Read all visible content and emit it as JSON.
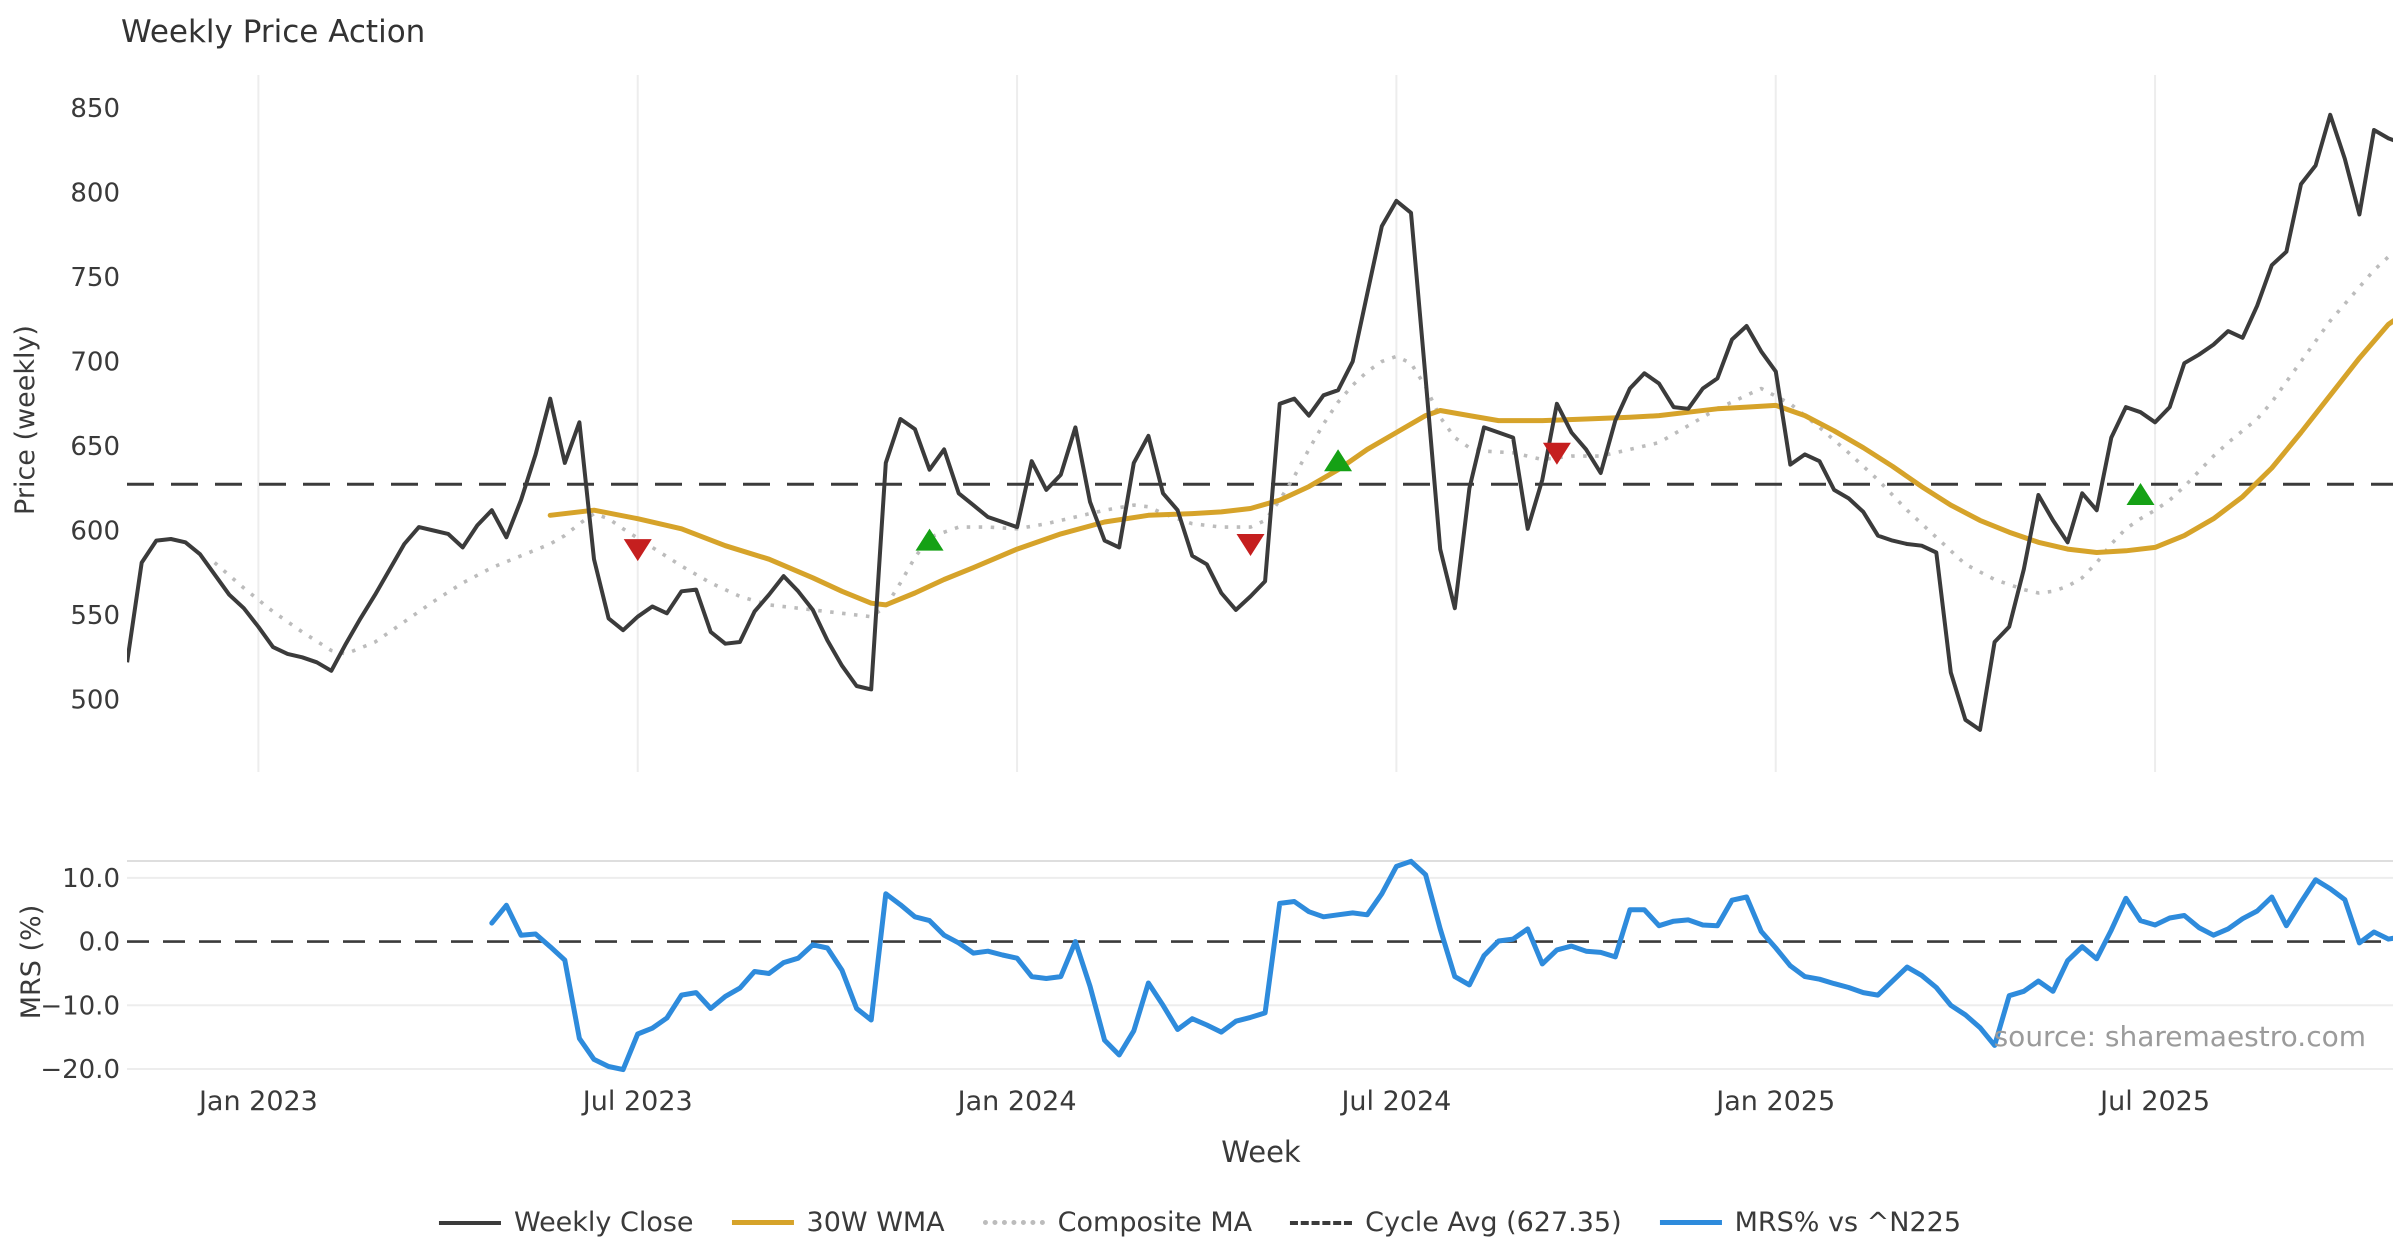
{
  "title": "Weekly Price Action",
  "price_axis": {
    "ylabel": "Price (weekly)",
    "yticks": [
      850,
      800,
      750,
      700,
      650,
      600,
      550,
      500
    ]
  },
  "mrs_axis": {
    "ylabel": "MRS (%)",
    "yticks": [
      {
        "label": "10.0",
        "value": 10
      },
      {
        "label": "0.0",
        "value": 0
      },
      {
        "label": "−10.0",
        "value": -10
      },
      {
        "label": "−20.0",
        "value": -20
      }
    ]
  },
  "xlabel": "Week",
  "source": "source: sharemaestro.com",
  "legend": [
    {
      "label": "Weekly Close",
      "key": "close",
      "style": "solid"
    },
    {
      "label": "30W WMA",
      "key": "wma",
      "style": "solid"
    },
    {
      "label": "Composite MA",
      "key": "composite",
      "style": "dotted"
    },
    {
      "label": "Cycle Avg (627.35)",
      "key": "cycle",
      "style": "dashed"
    },
    {
      "label": "MRS% vs ^N225",
      "key": "mrs",
      "style": "solid"
    }
  ],
  "colors": {
    "close": "#3b3b3b",
    "wma": "#d6a32a",
    "composite": "#bcbcbc",
    "cycle": "#3b3b3b",
    "mrs": "#2e8bdc",
    "buy": "#15a115",
    "sell": "#c51f1f",
    "grid": "#ededed",
    "spine": "#d9d9d9",
    "tick": "#3a3a3a",
    "source": "#9b9b9b"
  },
  "chart_data": [
    {
      "type": "line",
      "panel": "price",
      "title": "Weekly Price Action",
      "xlabel": "Week",
      "ylabel": "Price (weekly)",
      "ylim": [
        457,
        869
      ],
      "x_unit": "weeks since 2023-01-02",
      "xticks": [
        {
          "label": "Jan 2023",
          "week": 0
        },
        {
          "label": "Jul 2023",
          "week": 26
        },
        {
          "label": "Jan 2024",
          "week": 52
        },
        {
          "label": "Jul 2024",
          "week": 78
        },
        {
          "label": "Jan 2025",
          "week": 104
        },
        {
          "label": "Jul 2025",
          "week": 130
        }
      ],
      "cycle_avg": 627.35,
      "series": [
        {
          "name": "Weekly Close",
          "start_week": -9,
          "step": 1,
          "values": [
            522,
            581,
            594,
            595,
            593,
            586,
            574,
            562,
            554,
            543,
            531,
            527,
            525,
            522,
            517,
            533,
            548,
            562,
            577,
            592,
            602,
            600,
            598,
            590,
            603,
            612,
            596,
            618,
            645,
            678,
            640,
            664,
            583,
            548,
            541,
            549,
            555,
            551,
            564,
            565,
            540,
            533,
            534,
            552,
            562,
            573,
            564,
            553,
            535,
            520,
            508,
            506,
            640,
            666,
            660,
            636,
            648,
            622,
            615,
            608,
            605,
            602,
            641,
            624,
            633,
            661,
            617,
            594,
            590,
            640,
            656,
            622,
            612,
            585,
            580,
            563,
            553,
            561,
            570,
            675,
            678,
            668,
            680,
            683,
            700,
            740,
            780,
            795,
            788,
            690,
            589,
            554,
            625,
            661,
            658,
            655,
            601,
            630,
            675,
            658,
            648,
            634,
            665,
            684,
            693,
            687,
            673,
            672,
            684,
            690,
            713,
            721,
            706,
            694,
            639,
            645,
            641,
            624,
            619,
            611,
            597,
            594,
            592,
            591,
            587,
            516,
            488,
            482,
            534,
            543,
            577,
            621,
            606,
            593,
            622,
            612,
            655,
            673,
            670,
            664,
            673,
            699,
            704,
            710,
            718,
            714,
            733,
            757,
            765,
            805,
            816,
            846,
            820,
            787,
            837,
            832,
            829
          ]
        },
        {
          "name": "30W WMA",
          "points": [
            [
              20,
              609
            ],
            [
              23,
              612
            ],
            [
              26,
              607
            ],
            [
              29,
              601
            ],
            [
              32,
              591
            ],
            [
              35,
              583
            ],
            [
              38,
              572
            ],
            [
              40,
              564
            ],
            [
              42,
              557
            ],
            [
              43,
              556
            ],
            [
              45,
              563
            ],
            [
              47,
              571
            ],
            [
              49,
              578
            ],
            [
              52,
              589
            ],
            [
              55,
              598
            ],
            [
              58,
              605
            ],
            [
              61,
              609
            ],
            [
              64,
              610
            ],
            [
              66,
              611
            ],
            [
              68,
              613
            ],
            [
              70,
              618
            ],
            [
              72,
              626
            ],
            [
              74,
              636
            ],
            [
              76,
              648
            ],
            [
              78,
              658
            ],
            [
              80,
              668
            ],
            [
              81,
              671
            ],
            [
              83,
              668
            ],
            [
              85,
              665
            ],
            [
              88,
              665
            ],
            [
              91,
              666
            ],
            [
              94,
              667
            ],
            [
              96,
              668
            ],
            [
              98,
              670
            ],
            [
              100,
              672
            ],
            [
              102,
              673
            ],
            [
              104,
              674
            ],
            [
              106,
              668
            ],
            [
              108,
              659
            ],
            [
              110,
              649
            ],
            [
              112,
              638
            ],
            [
              114,
              626
            ],
            [
              116,
              615
            ],
            [
              118,
              606
            ],
            [
              120,
              599
            ],
            [
              122,
              593
            ],
            [
              124,
              589
            ],
            [
              126,
              587
            ],
            [
              128,
              588
            ],
            [
              130,
              590
            ],
            [
              132,
              597
            ],
            [
              134,
              607
            ],
            [
              136,
              620
            ],
            [
              138,
              637
            ],
            [
              140,
              658
            ],
            [
              142,
              680
            ],
            [
              144,
              702
            ],
            [
              146,
              722
            ],
            [
              147,
              728
            ]
          ]
        },
        {
          "name": "Composite MA",
          "points": [
            [
              -3,
              581
            ],
            [
              -1,
              566
            ],
            [
              1,
              552
            ],
            [
              3,
              540
            ],
            [
              5,
              529
            ],
            [
              6,
              527
            ],
            [
              8,
              534
            ],
            [
              10,
              546
            ],
            [
              12,
              558
            ],
            [
              14,
              569
            ],
            [
              16,
              578
            ],
            [
              18,
              585
            ],
            [
              20,
              592
            ],
            [
              21,
              597
            ],
            [
              22,
              604
            ],
            [
              23,
              610
            ],
            [
              24,
              607
            ],
            [
              25,
              601
            ],
            [
              27,
              590
            ],
            [
              29,
              579
            ],
            [
              31,
              569
            ],
            [
              33,
              561
            ],
            [
              35,
              556
            ],
            [
              37,
              554
            ],
            [
              39,
              552
            ],
            [
              41,
              550
            ],
            [
              42,
              549
            ],
            [
              43,
              555
            ],
            [
              44,
              569
            ],
            [
              45,
              584
            ],
            [
              46,
              596
            ],
            [
              48,
              602
            ],
            [
              50,
              602
            ],
            [
              52,
              601
            ],
            [
              54,
              604
            ],
            [
              56,
              608
            ],
            [
              58,
              612
            ],
            [
              60,
              615
            ],
            [
              61,
              614
            ],
            [
              62,
              610
            ],
            [
              63,
              607
            ],
            [
              64,
              604
            ],
            [
              66,
              602
            ],
            [
              68,
              602
            ],
            [
              69,
              606
            ],
            [
              70,
              618
            ],
            [
              71,
              632
            ],
            [
              72,
              648
            ],
            [
              73,
              663
            ],
            [
              74,
              676
            ],
            [
              75,
              686
            ],
            [
              76,
              694
            ],
            [
              77,
              700
            ],
            [
              78,
              703
            ],
            [
              79,
              699
            ],
            [
              80,
              685
            ],
            [
              81,
              667
            ],
            [
              82,
              655
            ],
            [
              83,
              649
            ],
            [
              84,
              647
            ],
            [
              86,
              646
            ],
            [
              88,
              642
            ],
            [
              90,
              644
            ],
            [
              92,
              644
            ],
            [
              94,
              648
            ],
            [
              96,
              652
            ],
            [
              98,
              662
            ],
            [
              100,
              672
            ],
            [
              102,
              680
            ],
            [
              103,
              684
            ],
            [
              105,
              675
            ],
            [
              107,
              661
            ],
            [
              109,
              646
            ],
            [
              111,
              630
            ],
            [
              113,
              612
            ],
            [
              115,
              596
            ],
            [
              117,
              580
            ],
            [
              119,
              571
            ],
            [
              121,
              565
            ],
            [
              122,
              563
            ],
            [
              123,
              564
            ],
            [
              124,
              567
            ],
            [
              125,
              572
            ],
            [
              126,
              581
            ],
            [
              127,
              592
            ],
            [
              128,
              601
            ],
            [
              129,
              607
            ],
            [
              130,
              612
            ],
            [
              131,
              618
            ],
            [
              132,
              626
            ],
            [
              133,
              635
            ],
            [
              134,
              644
            ],
            [
              135,
              652
            ],
            [
              136,
              659
            ],
            [
              137,
              666
            ],
            [
              138,
              676
            ],
            [
              139,
              688
            ],
            [
              140,
              700
            ],
            [
              141,
              712
            ],
            [
              142,
              724
            ],
            [
              143,
              734
            ],
            [
              144,
              744
            ],
            [
              145,
              754
            ],
            [
              146,
              762
            ],
            [
              147,
              768
            ]
          ]
        }
      ],
      "markers": [
        {
          "week": 26,
          "value": 589,
          "type": "sell"
        },
        {
          "week": 46,
          "value": 594,
          "type": "buy"
        },
        {
          "week": 68,
          "value": 592,
          "type": "sell"
        },
        {
          "week": 74,
          "value": 641,
          "type": "buy"
        },
        {
          "week": 89,
          "value": 646,
          "type": "sell"
        },
        {
          "week": 129,
          "value": 621,
          "type": "buy"
        }
      ]
    },
    {
      "type": "line",
      "panel": "mrs",
      "ylabel": "MRS (%)",
      "ylim": [
        -22.5,
        14.7
      ],
      "zero_line": 0,
      "series": [
        {
          "name": "MRS% vs ^N225",
          "start_week": 16,
          "step": 1,
          "values": [
            2.9,
            5.7,
            1.0,
            1.2,
            -0.8,
            -2.9,
            -15.2,
            -18.5,
            -19.6,
            -20.1,
            -14.5,
            -13.6,
            -12.0,
            -8.4,
            -8.0,
            -10.5,
            -8.6,
            -7.3,
            -4.7,
            -5.0,
            -3.3,
            -2.6,
            -0.5,
            -1.0,
            -4.5,
            -10.5,
            -12.3,
            7.5,
            5.8,
            3.9,
            3.3,
            1.0,
            -0.2,
            -1.8,
            -1.5,
            -2.1,
            -2.6,
            -5.5,
            -5.8,
            -5.5,
            0.0,
            -7.0,
            -15.5,
            -17.8,
            -14.0,
            -6.5,
            -10.0,
            -13.8,
            -12.1,
            -13.1,
            -14.2,
            -12.5,
            -11.9,
            -11.2,
            6.0,
            6.3,
            4.7,
            3.9,
            4.2,
            4.5,
            4.2,
            7.5,
            11.8,
            12.6,
            10.5,
            2.0,
            -5.5,
            -6.8,
            -2.2,
            0.1,
            0.4,
            2.0,
            -3.5,
            -1.3,
            -0.7,
            -1.5,
            -1.7,
            -2.4,
            5.0,
            5.0,
            2.5,
            3.2,
            3.4,
            2.6,
            2.5,
            6.5,
            7.0,
            1.6,
            -1.0,
            -3.8,
            -5.5,
            -5.9,
            -6.6,
            -7.2,
            -8.0,
            -8.4,
            -6.2,
            -4.0,
            -5.3,
            -7.2,
            -10.0,
            -11.5,
            -13.5,
            -16.3,
            -8.5,
            -7.8,
            -6.2,
            -7.8,
            -3.0,
            -0.8,
            -2.7,
            1.8,
            6.8,
            3.3,
            2.6,
            3.7,
            4.1,
            2.2,
            1.0,
            2.0,
            3.6,
            4.8,
            7.0,
            2.5,
            6.2,
            9.7,
            8.3,
            6.6,
            -0.2,
            1.5,
            0.4,
            0.8
          ]
        }
      ]
    }
  ]
}
